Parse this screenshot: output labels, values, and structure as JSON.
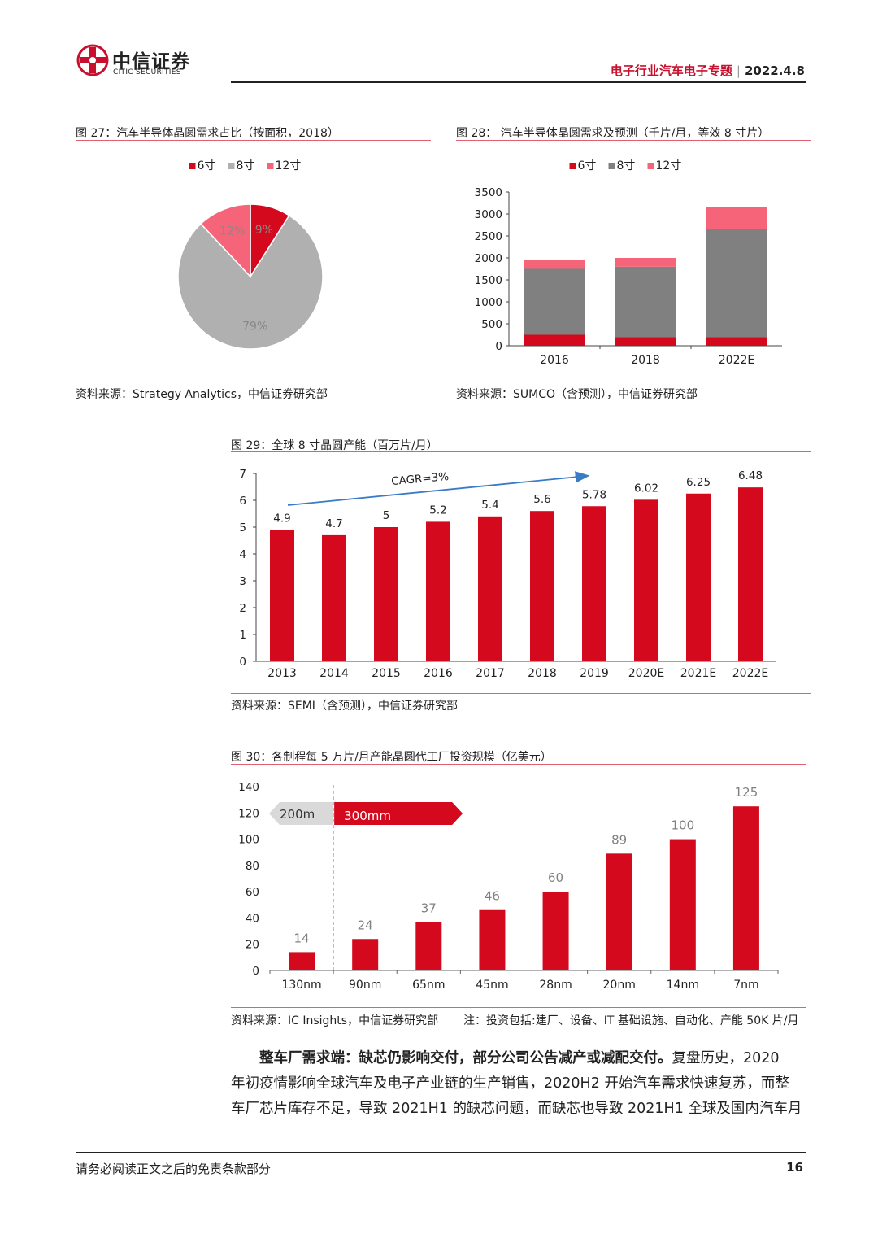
{
  "header": {
    "brand_cn": "中信证券",
    "brand_en": "CITIC SECURITIES",
    "report_title": "电子行业汽车电子专题",
    "separator": "|",
    "date": "2022.4.8"
  },
  "colors": {
    "red": "#d4091d",
    "gray": "#808080",
    "light_gray": "#b0b0b0",
    "pink": "#f56478"
  },
  "figures": [
    {
      "title": "图 27：汽车半导体晶圆需求占比（按面积，2018）",
      "source": "资料来源：Strategy Analytics，中信证券研究部"
    },
    {
      "title": "图 28：  汽车半导体晶圆需求及预测（千片/月，等效 8 寸片）",
      "source": "资料来源：SUMCO（含预测），中信证券研究部"
    },
    {
      "title": "图 29：全球 8 寸晶圆产能（百万片/月）",
      "source": "资料来源：SEMI（含预测），中信证券研究部"
    },
    {
      "title": "图 30：各制程每 5 万片/月产能晶圆代工厂投资规模（亿美元）",
      "source": "资料来源：IC Insights，中信证券研究部",
      "note": "注：投资包括:建厂、设备、IT 基础设施、自动化、产能 50K 片/月"
    }
  ],
  "chart_data": [
    {
      "type": "pie",
      "labels": [
        "6寸",
        "8寸",
        "12寸"
      ],
      "values": [
        9,
        79,
        12
      ],
      "data_labels": [
        "9%",
        "79%",
        "12%"
      ],
      "legend": [
        "6寸",
        "8寸",
        "12寸"
      ],
      "legend_position": "top"
    },
    {
      "type": "bar",
      "stacked": true,
      "categories": [
        "2016",
        "2018",
        "2022E"
      ],
      "series": [
        {
          "name": "6寸",
          "values": [
            250,
            200,
            200
          ]
        },
        {
          "name": "8寸",
          "values": [
            1500,
            1600,
            2450
          ]
        },
        {
          "name": "12寸",
          "values": [
            200,
            200,
            500
          ]
        }
      ],
      "ylim": [
        0,
        3500
      ],
      "yticks": [
        "0",
        "500",
        "1000",
        "1500",
        "2000",
        "2500",
        "3000",
        "3500"
      ],
      "legend_position": "top"
    },
    {
      "type": "bar",
      "categories": [
        "2013",
        "2014",
        "2015",
        "2016",
        "2017",
        "2018",
        "2019",
        "2020E",
        "2021E",
        "2022E"
      ],
      "values": [
        4.9,
        4.7,
        5,
        5.2,
        5.4,
        5.6,
        5.78,
        6.02,
        6.25,
        6.48
      ],
      "data_labels": [
        "4.9",
        "4.7",
        "5",
        "5.2",
        "5.4",
        "5.6",
        "5.78",
        "6.02",
        "6.25",
        "6.48"
      ],
      "ylim": [
        0,
        7
      ],
      "yticks": [
        "0",
        "1",
        "2",
        "3",
        "4",
        "5",
        "6",
        "7"
      ],
      "annotation": "CAGR=3%"
    },
    {
      "type": "bar",
      "categories": [
        "130nm",
        "90nm",
        "65nm",
        "45nm",
        "28nm",
        "20nm",
        "14nm",
        "7nm"
      ],
      "values": [
        14,
        24,
        37,
        46,
        60,
        89,
        100,
        125
      ],
      "data_labels": [
        "14",
        "24",
        "37",
        "46",
        "60",
        "89",
        "100",
        "125"
      ],
      "ylim": [
        0,
        140
      ],
      "yticks": [
        "0",
        "20",
        "40",
        "60",
        "80",
        "100",
        "120",
        "140"
      ],
      "annotations": [
        "200m",
        "300mm"
      ]
    }
  ],
  "paragraph": {
    "bold": "整车厂需求端：缺芯仍影响交付，部分公司公告减产或减配交付。",
    "line1_rest": "复盘历史，2020",
    "line2": "年初疫情影响全球汽车及电子产业链的生产销售，2020H2 开始汽车需求快速复苏，而整",
    "line3": "车厂芯片库存不足，导致 2021H1 的缺芯问题，而缺芯也导致 2021H1 全球及国内汽车月"
  },
  "footer": {
    "disclaimer": "请务必阅读正文之后的免责条款部分",
    "page": "16"
  }
}
